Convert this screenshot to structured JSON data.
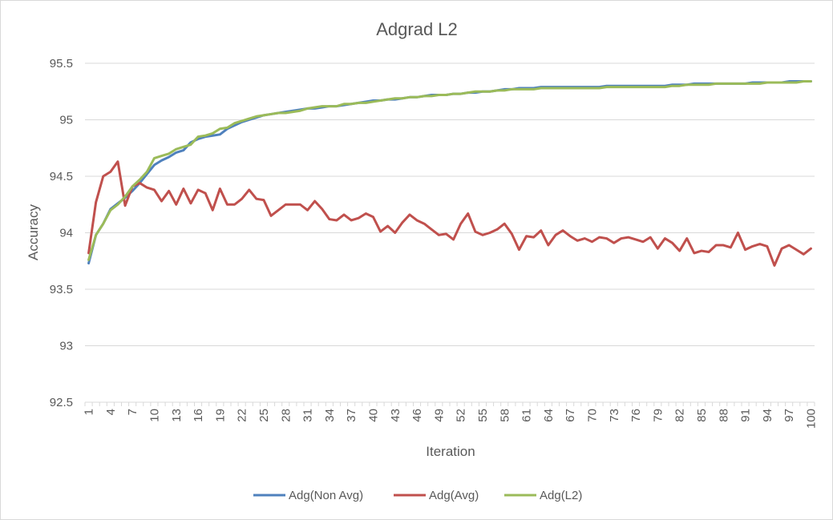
{
  "chart_data": {
    "type": "line",
    "title": "Adgrad L2",
    "xlabel": "Iteration",
    "ylabel": "Accuracy",
    "ylim": [
      92.5,
      95.5
    ],
    "yticks": [
      "92.5",
      "93",
      "93.5",
      "94",
      "94.5",
      "95",
      "95.5"
    ],
    "xlim": [
      1,
      100
    ],
    "xtick_labels": [
      "1",
      "4",
      "7",
      "10",
      "13",
      "16",
      "19",
      "22",
      "25",
      "28",
      "31",
      "34",
      "37",
      "40",
      "43",
      "46",
      "49",
      "52",
      "55",
      "58",
      "61",
      "64",
      "67",
      "70",
      "73",
      "76",
      "79",
      "82",
      "85",
      "88",
      "91",
      "94",
      "97",
      "100"
    ],
    "grid": "horizontal",
    "legend_position": "bottom",
    "x": [
      1,
      2,
      3,
      4,
      5,
      6,
      7,
      8,
      9,
      10,
      11,
      12,
      13,
      14,
      15,
      16,
      17,
      18,
      19,
      20,
      21,
      22,
      23,
      24,
      25,
      26,
      27,
      28,
      29,
      30,
      31,
      32,
      33,
      34,
      35,
      36,
      37,
      38,
      39,
      40,
      41,
      42,
      43,
      44,
      45,
      46,
      47,
      48,
      49,
      50,
      51,
      52,
      53,
      54,
      55,
      56,
      57,
      58,
      59,
      60,
      61,
      62,
      63,
      64,
      65,
      66,
      67,
      68,
      69,
      70,
      71,
      72,
      73,
      74,
      75,
      76,
      77,
      78,
      79,
      80,
      81,
      82,
      83,
      84,
      85,
      86,
      87,
      88,
      89,
      90,
      91,
      92,
      93,
      94,
      95,
      96,
      97,
      98,
      99,
      100
    ],
    "series": [
      {
        "name": "Adg(Non Avg)",
        "color": "#4f81bd",
        "values": [
          93.73,
          93.98,
          94.08,
          94.21,
          94.26,
          94.31,
          94.37,
          94.44,
          94.52,
          94.6,
          94.64,
          94.67,
          94.71,
          94.73,
          94.8,
          94.83,
          94.85,
          94.86,
          94.87,
          94.92,
          94.95,
          94.98,
          95.0,
          95.02,
          95.04,
          95.05,
          95.06,
          95.07,
          95.08,
          95.09,
          95.1,
          95.1,
          95.11,
          95.12,
          95.12,
          95.13,
          95.14,
          95.15,
          95.16,
          95.17,
          95.17,
          95.18,
          95.18,
          95.19,
          95.2,
          95.2,
          95.21,
          95.22,
          95.22,
          95.22,
          95.23,
          95.23,
          95.24,
          95.24,
          95.25,
          95.25,
          95.26,
          95.27,
          95.27,
          95.28,
          95.28,
          95.28,
          95.29,
          95.29,
          95.29,
          95.29,
          95.29,
          95.29,
          95.29,
          95.29,
          95.29,
          95.3,
          95.3,
          95.3,
          95.3,
          95.3,
          95.3,
          95.3,
          95.3,
          95.3,
          95.31,
          95.31,
          95.31,
          95.32,
          95.32,
          95.32,
          95.32,
          95.32,
          95.32,
          95.32,
          95.32,
          95.33,
          95.33,
          95.33,
          95.33,
          95.33,
          95.34,
          95.34,
          95.34,
          95.34
        ]
      },
      {
        "name": "Adg(Avg)",
        "color": "#c0504d",
        "values": [
          93.82,
          94.27,
          94.5,
          94.54,
          94.63,
          94.24,
          94.41,
          94.44,
          94.4,
          94.38,
          94.28,
          94.37,
          94.25,
          94.39,
          94.26,
          94.38,
          94.35,
          94.2,
          94.39,
          94.25,
          94.25,
          94.3,
          94.38,
          94.3,
          94.29,
          94.15,
          94.2,
          94.25,
          94.25,
          94.25,
          94.2,
          94.28,
          94.21,
          94.12,
          94.11,
          94.16,
          94.11,
          94.13,
          94.17,
          94.14,
          94.01,
          94.06,
          94.0,
          94.09,
          94.16,
          94.11,
          94.08,
          94.03,
          93.98,
          93.99,
          93.94,
          94.08,
          94.17,
          94.01,
          93.98,
          94.0,
          94.03,
          94.08,
          93.99,
          93.85,
          93.97,
          93.96,
          94.02,
          93.89,
          93.98,
          94.02,
          93.97,
          93.93,
          93.95,
          93.92,
          93.96,
          93.95,
          93.91,
          93.95,
          93.96,
          93.94,
          93.92,
          93.96,
          93.86,
          93.95,
          93.91,
          93.84,
          93.95,
          93.82,
          93.84,
          93.83,
          93.89,
          93.89,
          93.87,
          94.0,
          93.85,
          93.88,
          93.9,
          93.88,
          93.71,
          93.86,
          93.89,
          93.85,
          93.81,
          93.86
        ]
      },
      {
        "name": "Adg(L2)",
        "color": "#9bbb59",
        "values": [
          93.76,
          93.98,
          94.08,
          94.2,
          94.25,
          94.32,
          94.41,
          94.47,
          94.54,
          94.66,
          94.68,
          94.7,
          94.74,
          94.76,
          94.78,
          94.85,
          94.86,
          94.88,
          94.92,
          94.93,
          94.97,
          94.99,
          95.01,
          95.03,
          95.04,
          95.05,
          95.06,
          95.06,
          95.07,
          95.08,
          95.1,
          95.11,
          95.12,
          95.12,
          95.12,
          95.14,
          95.14,
          95.15,
          95.15,
          95.16,
          95.17,
          95.18,
          95.19,
          95.19,
          95.2,
          95.2,
          95.21,
          95.21,
          95.22,
          95.22,
          95.23,
          95.23,
          95.24,
          95.25,
          95.25,
          95.25,
          95.26,
          95.26,
          95.27,
          95.27,
          95.27,
          95.27,
          95.28,
          95.28,
          95.28,
          95.28,
          95.28,
          95.28,
          95.28,
          95.28,
          95.28,
          95.29,
          95.29,
          95.29,
          95.29,
          95.29,
          95.29,
          95.29,
          95.29,
          95.29,
          95.3,
          95.3,
          95.31,
          95.31,
          95.31,
          95.31,
          95.32,
          95.32,
          95.32,
          95.32,
          95.32,
          95.32,
          95.32,
          95.33,
          95.33,
          95.33,
          95.33,
          95.33,
          95.34,
          95.34
        ]
      }
    ]
  }
}
